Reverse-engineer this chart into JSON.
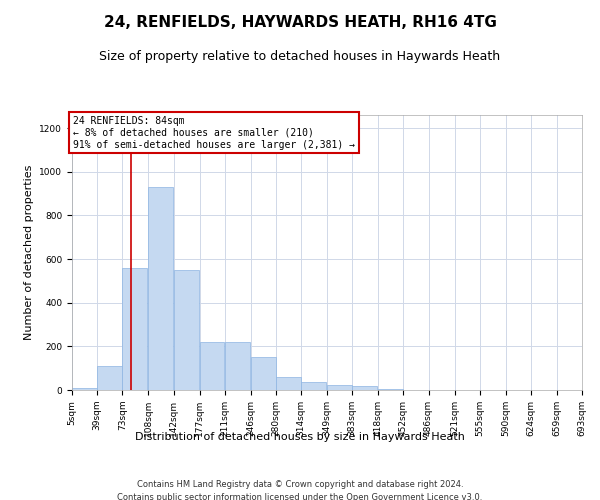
{
  "title1": "24, RENFIELDS, HAYWARDS HEATH, RH16 4TG",
  "title2": "Size of property relative to detached houses in Haywards Heath",
  "xlabel": "Distribution of detached houses by size in Haywards Heath",
  "ylabel": "Number of detached properties",
  "footer1": "Contains HM Land Registry data © Crown copyright and database right 2024.",
  "footer2": "Contains public sector information licensed under the Open Government Licence v3.0.",
  "annotation_line1": "24 RENFIELDS: 84sqm",
  "annotation_line2": "← 8% of detached houses are smaller (210)",
  "annotation_line3": "91% of semi-detached houses are larger (2,381) →",
  "property_size": 84,
  "bar_color": "#c5d9f1",
  "bar_edge_color": "#8db4e2",
  "marker_color": "#cc0000",
  "annotation_box_color": "#cc0000",
  "bins": [
    5,
    39,
    73,
    108,
    142,
    177,
    211,
    246,
    280,
    314,
    349,
    383,
    418,
    452,
    486,
    521,
    555,
    590,
    624,
    659,
    693
  ],
  "counts": [
    10,
    110,
    560,
    930,
    550,
    220,
    220,
    150,
    60,
    35,
    25,
    20,
    5,
    2,
    1,
    0,
    0,
    0,
    0,
    0
  ],
  "ylim": [
    0,
    1260
  ],
  "yticks": [
    0,
    200,
    400,
    600,
    800,
    1000,
    1200
  ],
  "background_color": "#ffffff",
  "grid_color": "#d0d8e8",
  "title1_fontsize": 11,
  "title2_fontsize": 9,
  "xlabel_fontsize": 8,
  "ylabel_fontsize": 8,
  "tick_fontsize": 6.5,
  "footer_fontsize": 6,
  "ann_fontsize": 7
}
